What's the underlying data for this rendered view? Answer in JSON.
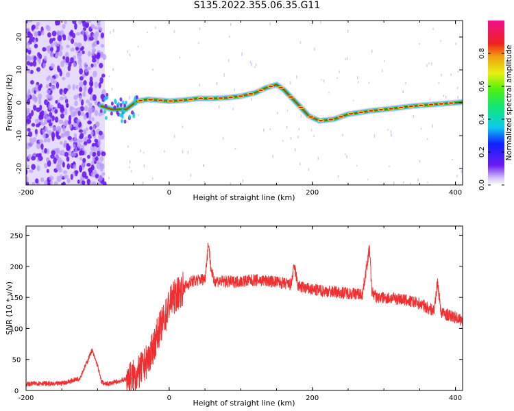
{
  "title": "S135.2022.355.06.35.G11",
  "colors": {
    "signal": "#f03030",
    "track_core": "#e02020",
    "track_mid": "#20d020",
    "track_edge": "#18c8e8",
    "noise": "#6a1cf0",
    "noise_light": "#b79af8"
  },
  "chart_data": [
    {
      "type": "heatmap",
      "title": "",
      "xlabel": "Height of straight line (km)",
      "ylabel": "Frequency (Hz)",
      "xlim": [
        -200,
        410
      ],
      "ylim": [
        -25,
        25
      ],
      "xticks": [
        -200,
        0,
        200,
        400
      ],
      "yticks": [
        20,
        10,
        0,
        -10,
        -20
      ],
      "ridge": {
        "x": [
          -95,
          -80,
          -60,
          -45,
          -30,
          -10,
          0,
          20,
          40,
          60,
          80,
          100,
          120,
          135,
          150,
          160,
          180,
          195,
          210,
          230,
          250,
          280,
          310,
          340,
          370,
          400,
          410
        ],
        "y": [
          -1,
          -2,
          -2,
          0.5,
          1,
          0.7,
          0.5,
          0.8,
          1.3,
          1.3,
          1.5,
          2,
          3,
          4.5,
          5.5,
          4,
          -0.5,
          -4,
          -5.5,
          -5,
          -3.5,
          -2.5,
          -1.8,
          -1,
          -0.5,
          0,
          0.2
        ]
      },
      "noise_region": [
        -200,
        -90
      ],
      "colorbar": {
        "label": "Normalized spectral amplitude",
        "ticks": [
          "0.0",
          "0.2",
          "0.4",
          "0.6",
          "0.8"
        ],
        "range": [
          0,
          1
        ]
      }
    },
    {
      "type": "line",
      "title": "",
      "xlabel": "Height of straight line (km)",
      "ylabel": "SNR (10 * v/v)",
      "xlim": [
        -200,
        410
      ],
      "ylim": [
        0,
        265
      ],
      "xticks": [
        -200,
        0,
        200,
        400
      ],
      "yticks": [
        0,
        50,
        100,
        150,
        200,
        250
      ],
      "series": [
        {
          "x": [
            -200,
            -180,
            -160,
            -140,
            -125,
            -115,
            -108,
            -100,
            -95,
            -90,
            -80,
            -60,
            -45,
            -35,
            -25,
            -15,
            -5,
            0,
            10,
            20,
            30,
            40,
            50,
            55,
            58,
            62,
            70,
            90,
            120,
            150,
            170,
            175,
            180,
            200,
            240,
            270,
            280,
            283,
            290,
            320,
            350,
            370,
            375,
            380,
            400,
            410
          ],
          "y": [
            10,
            12,
            10,
            14,
            20,
            45,
            65,
            40,
            15,
            10,
            12,
            18,
            25,
            40,
            60,
            95,
            120,
            140,
            155,
            165,
            175,
            178,
            180,
            240,
            200,
            178,
            176,
            175,
            178,
            175,
            170,
            200,
            168,
            162,
            158,
            155,
            230,
            160,
            150,
            148,
            140,
            128,
            175,
            125,
            118,
            112
          ]
        }
      ]
    }
  ]
}
